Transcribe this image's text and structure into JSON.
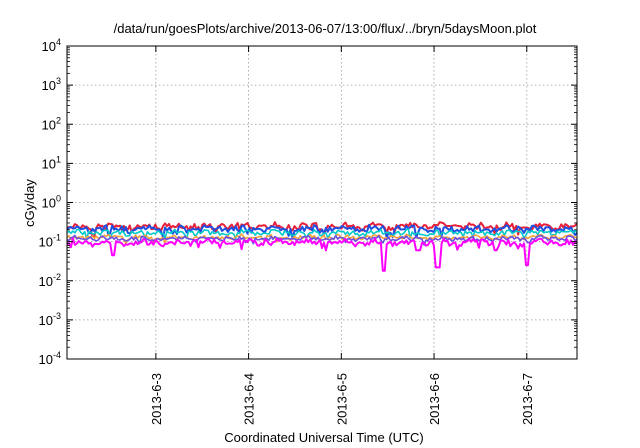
{
  "chart_data": {
    "type": "line",
    "title": "/data/run/goesPlots/archive/2013-06-07/13:00/flux/../bryn/5daysMoon.plot",
    "xlabel": "Coordinated Universal Time (UTC)",
    "ylabel": "cGy/day",
    "yscale": "log",
    "ylim": [
      0.0001,
      10000
    ],
    "xlim": [
      "2013-06-02 01:00",
      "2013-06-07 13:00"
    ],
    "grid": true,
    "y_ticks": [
      {
        "base": "10",
        "exp": "-4",
        "value": 0.0001
      },
      {
        "base": "10",
        "exp": "-3",
        "value": 0.001
      },
      {
        "base": "10",
        "exp": "-2",
        "value": 0.01
      },
      {
        "base": "10",
        "exp": "-1",
        "value": 0.1
      },
      {
        "base": "10",
        "exp": "0",
        "value": 1
      },
      {
        "base": "10",
        "exp": "1",
        "value": 10
      },
      {
        "base": "10",
        "exp": "2",
        "value": 100
      },
      {
        "base": "10",
        "exp": "3",
        "value": 1000
      },
      {
        "base": "10",
        "exp": "4",
        "value": 10000
      }
    ],
    "x_ticks": [
      {
        "label": "2013-6-3",
        "time": "2013-06-03 00:00"
      },
      {
        "label": "2013-6-4",
        "time": "2013-06-04 00:00"
      },
      {
        "label": "2013-6-5",
        "time": "2013-06-05 00:00"
      },
      {
        "label": "2013-6-6",
        "time": "2013-06-06 00:00"
      },
      {
        "label": "2013-6-7",
        "time": "2013-06-07 00:00"
      }
    ],
    "series": [
      {
        "color": "#e8203a",
        "level": 0.24,
        "jitter": 0.09,
        "dips": [],
        "width": 2
      },
      {
        "color": "#1f4fe0",
        "level": 0.21,
        "jitter": 0.09,
        "dips": [],
        "width": 2
      },
      {
        "color": "#00c9c9",
        "level": 0.17,
        "jitter": 0.07,
        "dips": [],
        "width": 1.6
      },
      {
        "color": "#f2a23a",
        "level": 0.13,
        "jitter": 0.06,
        "dips": [],
        "width": 1.6
      },
      {
        "color": "#6b4ee0",
        "level": 0.12,
        "jitter": 0.06,
        "dips": [],
        "width": 1.6
      },
      {
        "color": "#ff00ff",
        "level": 0.095,
        "jitter": 0.08,
        "dips": [
          {
            "time": "2013-06-02 13:00",
            "value": 0.045
          },
          {
            "time": "2013-06-05 11:00",
            "value": 0.018
          },
          {
            "time": "2013-06-05 20:00",
            "value": 0.06
          },
          {
            "time": "2013-06-06 01:00",
            "value": 0.022
          },
          {
            "time": "2013-06-06 16:00",
            "value": 0.06
          },
          {
            "time": "2013-06-07 00:00",
            "value": 0.025
          }
        ],
        "width": 2
      }
    ]
  }
}
